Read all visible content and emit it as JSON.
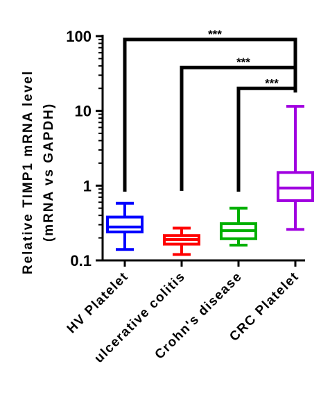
{
  "chart_data": {
    "type": "box",
    "ylabel": "Relative TIMP1 mRNA level",
    "ylabel_sub": "(mRNA vs GAPDH)",
    "yscale": "log",
    "ylim": [
      0.1,
      100
    ],
    "yticks": [
      0.1,
      1,
      10,
      100
    ],
    "ytick_labels": [
      "0.1",
      "1",
      "10",
      "100"
    ],
    "categories": [
      "HV Platelet",
      "ulcerative colitis",
      "Crohn's disease",
      "CRC Platelet"
    ],
    "colors": [
      "#0000ff",
      "#ff0000",
      "#00b000",
      "#a000e0"
    ],
    "boxes": [
      {
        "min": 0.14,
        "q1": 0.24,
        "median": 0.28,
        "q3": 0.38,
        "max": 0.58
      },
      {
        "min": 0.12,
        "q1": 0.165,
        "median": 0.19,
        "q3": 0.215,
        "max": 0.27
      },
      {
        "min": 0.16,
        "q1": 0.195,
        "median": 0.25,
        "q3": 0.31,
        "max": 0.5
      },
      {
        "min": 0.26,
        "q1": 0.63,
        "median": 0.93,
        "q3": 1.5,
        "max": 11.5
      }
    ],
    "comparisons": [
      {
        "from": 0,
        "to": 3,
        "label": "***",
        "from_y": 0.83,
        "bar_y": 90
      },
      {
        "from": 1,
        "to": 3,
        "label": "***",
        "from_y": 0.85,
        "bar_y": 38
      },
      {
        "from": 2,
        "to": 3,
        "label": "***",
        "from_y": 0.83,
        "bar_y": 20
      }
    ]
  }
}
